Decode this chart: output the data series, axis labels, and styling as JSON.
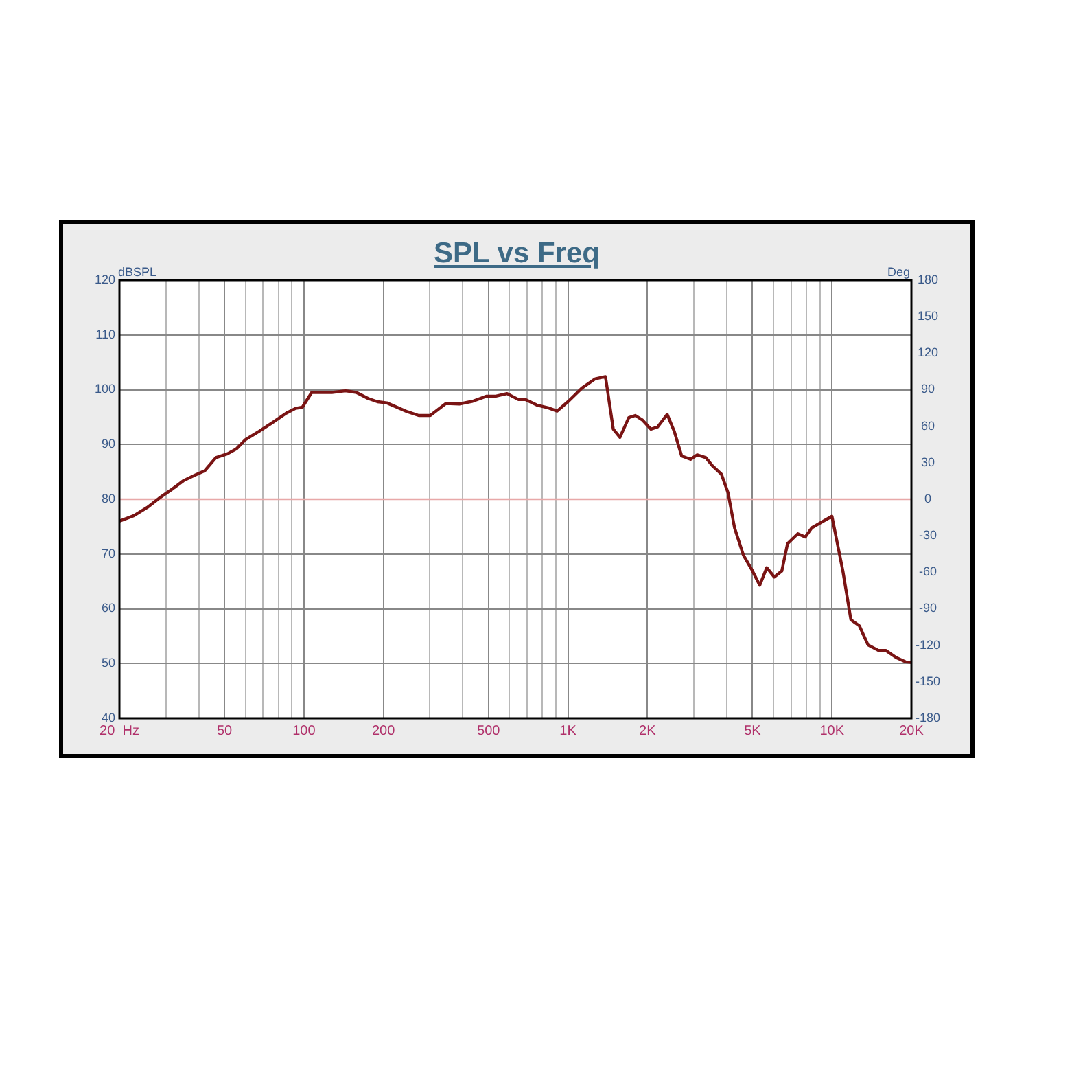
{
  "chart_data": {
    "type": "line",
    "title": "SPL vs Freq",
    "ylabel": "dBSPL",
    "y2label": "Deg",
    "x": [
      20,
      22.7,
      25.5,
      28.3,
      31.8,
      35,
      38.6,
      42.1,
      46.4,
      51.3,
      55.5,
      60.1,
      67.6,
      76,
      85.6,
      93,
      98.6,
      107,
      127.6,
      143.6,
      158,
      175,
      190,
      206,
      246,
      272,
      301,
      345,
      388,
      436,
      490,
      530,
      588,
      650,
      690,
      762,
      842,
      910,
      1005,
      1130,
      1270,
      1387,
      1485,
      1574,
      1700,
      1800,
      1911,
      2063,
      2186,
      2377,
      2528,
      2696,
      2912,
      3088,
      3329,
      3528,
      3812,
      4040,
      4276,
      4619,
      4990,
      5328,
      5665,
      6049,
      6459,
      6791,
      7423,
      7925,
      8396,
      10000,
      11000,
      11800,
      12700,
      13700,
      15000,
      16000,
      17500,
      19000,
      20000
    ],
    "series": [
      {
        "color": "#7a1414",
        "values": [
          76,
          77,
          78.5,
          80.2,
          81.9,
          83.4,
          84.4,
          85.2,
          87.6,
          88.3,
          89.2,
          90.9,
          92.4,
          94,
          95.7,
          96.6,
          96.8,
          99.5,
          99.5,
          99.8,
          99.5,
          98.4,
          97.8,
          97.6,
          96,
          95.3,
          95.3,
          97.5,
          97.4,
          97.9,
          98.8,
          98.8,
          99.3,
          98.2,
          98.2,
          97.2,
          96.7,
          96.1,
          97.9,
          100.3,
          102,
          102.4,
          92.8,
          91.3,
          94.9,
          95.3,
          94.5,
          92.8,
          93.2,
          95.5,
          92.4,
          87.9,
          87.3,
          88.1,
          87.6,
          86.1,
          84.6,
          81.2,
          74.8,
          69.8,
          67,
          64.3,
          67.5,
          65.8,
          66.9,
          71.9,
          73.7,
          73.1,
          74.8,
          76.9,
          66.9,
          58,
          56.9,
          53.4,
          52.4,
          52.4,
          51.1,
          50.3,
          50.2
        ]
      }
    ],
    "log": "x",
    "xlim": [
      20,
      20000
    ],
    "xticks": [
      {
        "value": 20,
        "label": "20  Hz"
      },
      {
        "value": 30,
        "label": null
      },
      {
        "value": 40,
        "label": null
      },
      50,
      {
        "value": 60,
        "label": null
      },
      {
        "value": 70,
        "label": null
      },
      {
        "value": 80,
        "label": null
      },
      {
        "value": 90,
        "label": null
      },
      100,
      200,
      {
        "value": 300,
        "label": null
      },
      {
        "value": 400,
        "label": null
      },
      500,
      {
        "value": 600,
        "label": null
      },
      {
        "value": 700,
        "label": null
      },
      {
        "value": 800,
        "label": null
      },
      {
        "value": 900,
        "label": null
      },
      {
        "value": 1000,
        "label": "1K"
      },
      {
        "value": 2000,
        "label": "2K"
      },
      {
        "value": 3000,
        "label": null
      },
      {
        "value": 4000,
        "label": null
      },
      {
        "value": 5000,
        "label": "5K"
      },
      {
        "value": 6000,
        "label": null
      },
      {
        "value": 7000,
        "label": null
      },
      {
        "value": 8000,
        "label": null
      },
      {
        "value": 9000,
        "label": null
      },
      {
        "value": 10000,
        "label": "10K"
      },
      {
        "value": 20000,
        "label": "20K"
      }
    ],
    "ylim": [
      40,
      120
    ],
    "yticks": [
      40,
      50,
      60,
      70,
      80,
      90,
      100,
      110,
      120
    ],
    "y2lim": [
      -180,
      180
    ],
    "y2ticks": [
      -180,
      -150,
      -120,
      -90,
      -60,
      -30,
      0,
      30,
      60,
      90,
      120,
      150,
      180
    ],
    "ref_lines": [
      {
        "axis": "y",
        "value": 80,
        "color": "#e8a8a8"
      }
    ],
    "grid": true,
    "legend": false,
    "marker": "none",
    "line_style": "solid"
  }
}
